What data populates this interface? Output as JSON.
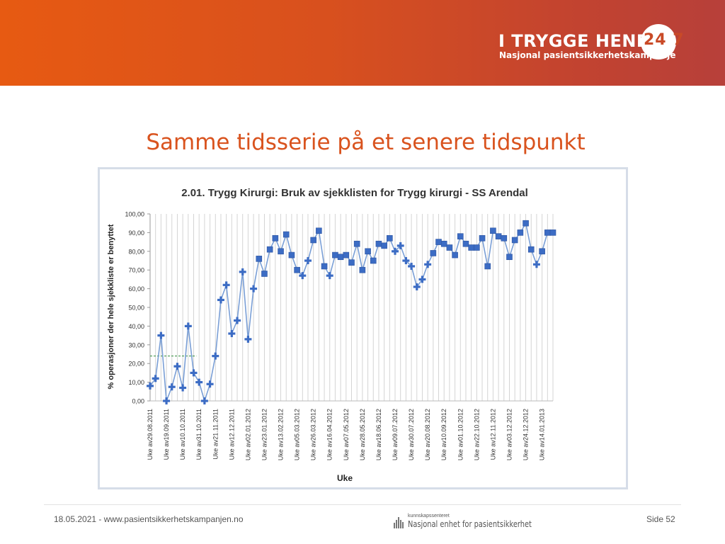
{
  "header": {
    "brand_title": "I TRYGGE HENDER",
    "brand_number": "24 7",
    "brand_subtitle": "Nasjonal pasientsikkerhetskampanje",
    "banner_color": "#e05520"
  },
  "slide": {
    "title": "Samme tidsserie på et senere tidspunkt",
    "title_color": "#d9531e"
  },
  "footer": {
    "date_url": "18.05.2021 - www.pasientsikkerhetskampanjen.no",
    "logo_small": "kunnskapssenteret",
    "logo_main": "Nasjonal enhet for pasientsikkerhet",
    "page": "Side 52"
  },
  "chart_data": {
    "type": "line",
    "title": "2.01. Trygg Kirurgi: Bruk av sjekklisten for Trygg kirurgi - SS Arendal",
    "xlabel": "Uke",
    "ylabel": "% operasjoner der hele sjekkliste er benyttet",
    "ylim": [
      0,
      100
    ],
    "ytick_step": 10,
    "ytick_format": "0.00 with comma decimal",
    "grid": "vertical gridlines at every week",
    "legend": "none",
    "line_color": "#7a9fd6",
    "marker_color": "#3c6cc4",
    "xtick_labels": [
      "Uke av29.08.2011",
      "Uke av19.09.2011",
      "Uke av10.10.2011",
      "Uke av31.10.2011",
      "Uke av21.11.2011",
      "Uke av12.12.2011",
      "Uke av02.01.2012",
      "Uke av23.01.2012",
      "Uke av13.02.2012",
      "Uke av05.03.2012",
      "Uke av26.03.2012",
      "Uke av16.04.2012",
      "Uke av07.05.2012",
      "Uke av28.05.2012",
      "Uke av18.06.2012",
      "Uke av09.07.2012",
      "Uke av30.07.2012",
      "Uke av20.08.2012",
      "Uke av10.09.2012",
      "Uke av01.10.2012",
      "Uke av22.10.2012",
      "Uke av12.11.2012",
      "Uke av03.12.2012",
      "Uke av24.12.2012",
      "Uke av14.01.2013"
    ],
    "weeks_between_labels": 3,
    "baseline_level": 24,
    "baseline_color": "#2e8b3a",
    "series": [
      {
        "values": [
          8,
          12,
          35,
          0,
          7.5,
          18.5,
          7,
          40,
          15,
          10,
          0,
          9,
          24,
          54,
          62,
          36,
          43,
          69,
          33,
          60,
          76,
          68,
          81,
          87,
          80,
          89,
          78,
          70,
          67,
          75,
          86,
          91,
          72,
          67,
          78,
          77,
          78,
          74,
          84,
          70,
          80,
          75,
          84,
          83,
          87,
          80,
          83,
          75,
          72,
          61,
          65,
          73,
          79,
          85,
          84,
          82,
          78,
          88,
          84,
          82,
          82,
          87,
          72,
          91,
          88,
          87,
          77,
          86,
          90,
          95,
          81,
          73,
          80,
          90,
          90
        ],
        "markers": [
          "plus",
          "plus",
          "plus",
          "plus",
          "plus",
          "plus",
          "plus",
          "plus",
          "plus",
          "plus",
          "plus",
          "plus",
          "plus",
          "plus",
          "plus",
          "plus",
          "plus",
          "plus",
          "plus",
          "plus",
          "square",
          "square",
          "square",
          "square",
          "square",
          "square",
          "square",
          "square",
          "plus",
          "plus",
          "square",
          "square",
          "square",
          "plus",
          "square",
          "square",
          "square",
          "square",
          "square",
          "square",
          "square",
          "square",
          "square",
          "square",
          "square",
          "plus",
          "plus",
          "plus",
          "plus",
          "plus",
          "plus",
          "plus",
          "square",
          "square",
          "square",
          "square",
          "square",
          "square",
          "square",
          "square",
          "square",
          "square",
          "square",
          "square",
          "square",
          "square",
          "square",
          "square",
          "square",
          "square",
          "square",
          "plus",
          "square",
          "square",
          "square"
        ]
      }
    ]
  }
}
